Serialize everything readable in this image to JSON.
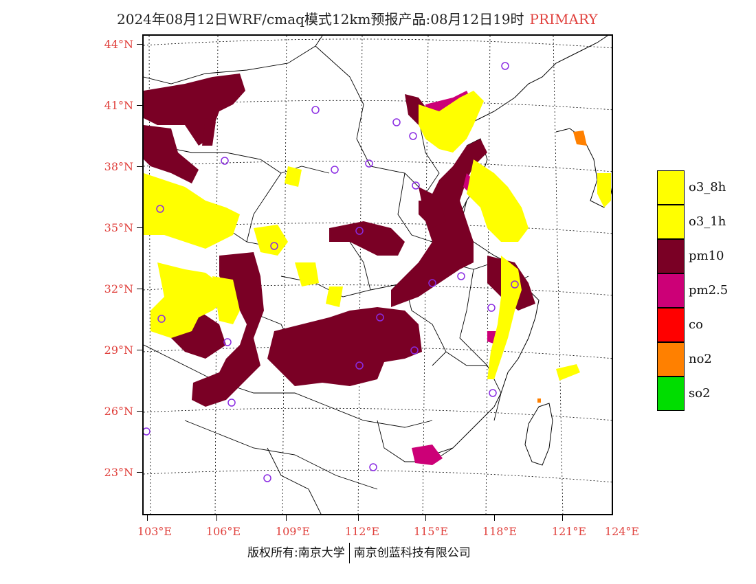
{
  "title": {
    "text": "2024年08月12日WRF/cmaq模式12km预报产品:08月12日19时",
    "tag": "PRIMARY",
    "tag_color": "#e0403c"
  },
  "axes": {
    "lat_labels": [
      "44°N",
      "41°N",
      "38°N",
      "35°N",
      "32°N",
      "29°N",
      "26°N",
      "23°N"
    ],
    "lon_labels": [
      "103°E",
      "106°E",
      "109°E",
      "112°E",
      "115°E",
      "118°E",
      "121°E",
      "124°E"
    ],
    "label_color": "#e0403c"
  },
  "legend": [
    {
      "label": "o3_8h",
      "color": "#ffff00"
    },
    {
      "label": "o3_1h",
      "color": "#ffff00"
    },
    {
      "label": "pm10",
      "color": "#7a0025"
    },
    {
      "label": "pm2.5",
      "color": "#cc0077"
    },
    {
      "label": "co",
      "color": "#ff0000"
    },
    {
      "label": "no2",
      "color": "#ff8000"
    },
    {
      "label": "so2",
      "color": "#00dd00"
    }
  ],
  "footer": {
    "left": "版权所有:南京大学",
    "right": "南京创蓝科技有限公司"
  },
  "city_marker_color": "#8a2be2"
}
